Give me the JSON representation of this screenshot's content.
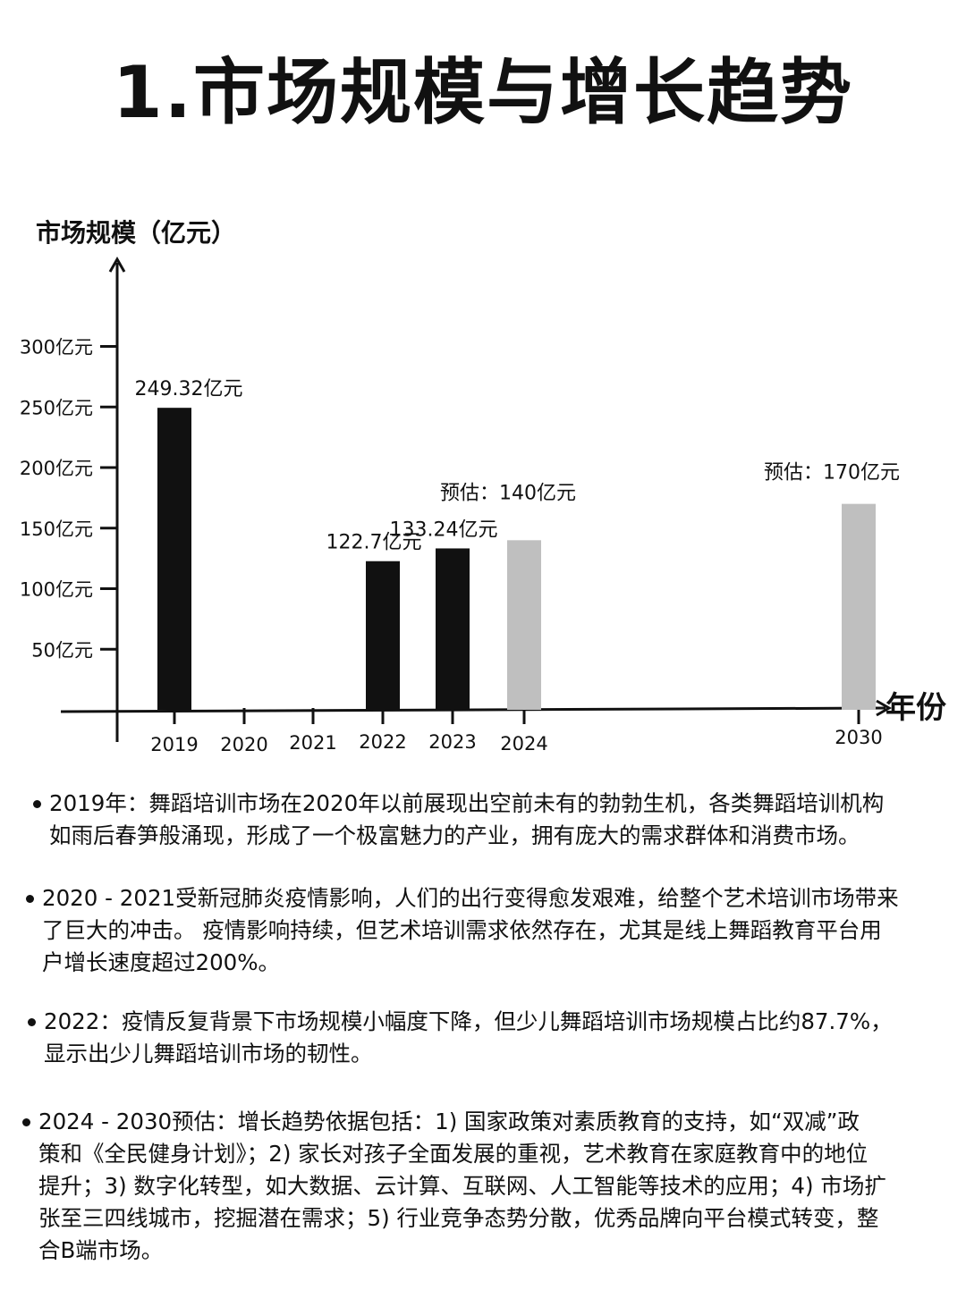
{
  "header": {
    "title": "1.市场规模与增长趋势"
  },
  "chart_data": {
    "type": "bar",
    "ylabel": "市场规模（亿元）",
    "xlabel": "年份",
    "y_ticks": [
      "300亿元",
      "250亿元",
      "200亿元",
      "150亿元",
      "100亿元",
      "50亿元"
    ],
    "y_tick_values": [
      300,
      250,
      200,
      150,
      100,
      50
    ],
    "x_ticks": [
      "2019",
      "2020",
      "2021",
      "2022",
      "2023",
      "2024",
      "2030"
    ],
    "bars": [
      {
        "year": "2019",
        "value": 249.32,
        "label": "249.32亿元",
        "estimated": false
      },
      {
        "year": "2022",
        "value": 122.7,
        "label": "122.7亿元",
        "estimated": false
      },
      {
        "year": "2023",
        "value": 133.24,
        "label": "133.24亿元",
        "estimated": false
      },
      {
        "year": "2024",
        "value": 140,
        "label": "预估：140亿元",
        "estimated": true
      },
      {
        "year": "2030",
        "value": 170,
        "label": "预估：170亿元",
        "estimated": true
      }
    ],
    "colors": {
      "actual": "#111111",
      "estimated": "#bfbfbf"
    }
  },
  "notes": [
    {
      "text_lines": [
        "2019年：舞蹈培训市场在2020年以前展现出空前未有的勃勃生机，各类舞蹈培训机构",
        "如雨后春笋般涌现，形成了一个极富魅力的产业，拥有庞大的需求群体和消费市场。"
      ]
    },
    {
      "text_lines": [
        "2020 - 2021受新冠肺炎疫情影响，人们的出行变得愈发艰难，给整个艺术培训市场带来",
        "了巨大的冲击。 疫情影响持续，但艺术培训需求依然存在，尤其是线上舞蹈教育平台用",
        "户增长速度超过200%。"
      ]
    },
    {
      "text_lines": [
        "2022：疫情反复背景下市场规模小幅度下降，但少儿舞蹈培训市场规模占比约87.7%，",
        "显示出少儿舞蹈培训市场的韧性。"
      ]
    },
    {
      "text_lines": [
        "2024 - 2030预估：增长趋势依据包括：1) 国家政策对素质教育的支持，如“双减”政",
        "策和《全民健身计划》；2) 家长对孩子全面发展的重视，艺术教育在家庭教育中的地位",
        "提升；3) 数字化转型，如大数据、云计算、互联网、人工智能等技术的应用；4) 市场扩",
        "张至三四线城市，挖掘潜在需求；5) 行业竞争态势分散，优秀品牌向平台模式转变，整",
        "合B端市场。"
      ]
    }
  ]
}
